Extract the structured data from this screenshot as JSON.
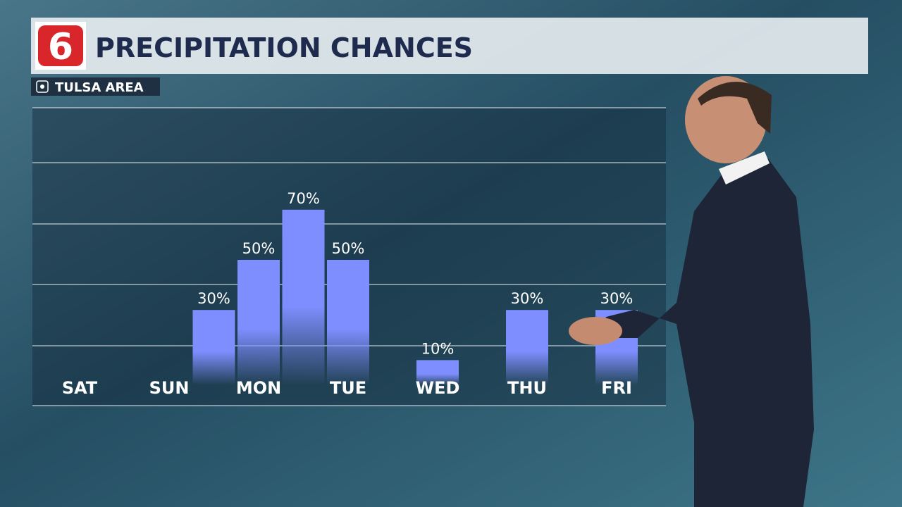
{
  "logo": "6",
  "chart_data": {
    "type": "bar",
    "title": "PRECIPITATION CHANCES",
    "subtitle": "TULSA AREA",
    "categories": [
      "SAT",
      null,
      "SUN",
      null,
      "MON",
      null,
      "TUE",
      null,
      "WED",
      null,
      "THU",
      null,
      "FRI"
    ],
    "values": [
      null,
      null,
      null,
      30,
      50,
      70,
      50,
      null,
      10,
      null,
      30,
      null,
      30
    ],
    "value_labels": [
      null,
      null,
      null,
      "30%",
      "50%",
      "70%",
      "50%",
      null,
      "10%",
      null,
      "30%",
      null,
      "30%"
    ],
    "color": "#7f8eff",
    "ylim": [
      0,
      100
    ]
  }
}
